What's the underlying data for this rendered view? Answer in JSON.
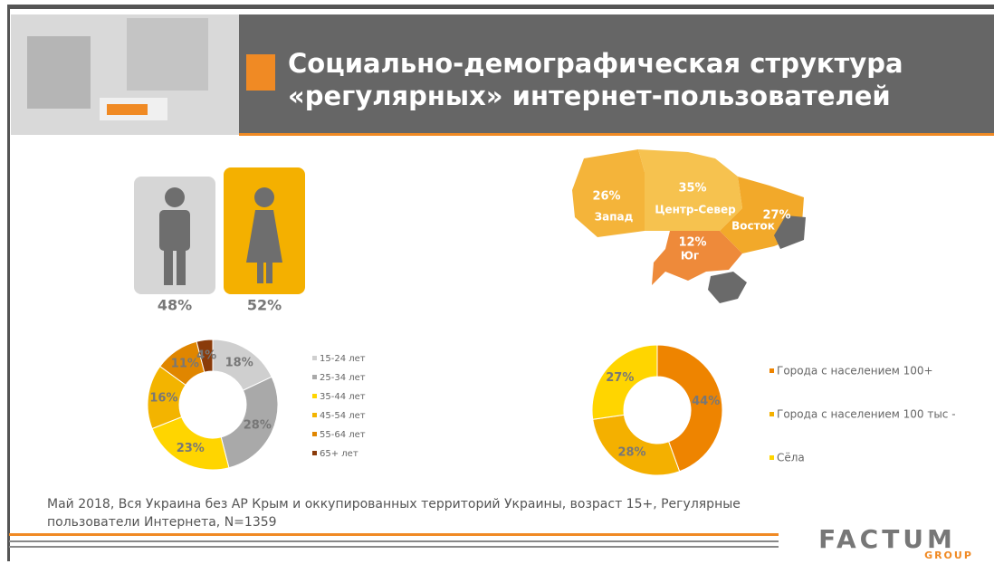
{
  "header": {
    "title_lines": [
      "Социально-демографическая структура",
      "«регулярных» интернет-пользователей"
    ]
  },
  "gender": {
    "male": "48%",
    "female": "52%"
  },
  "map": {
    "regions": [
      {
        "name": "Запад",
        "value": "26%"
      },
      {
        "name": "Центр-Север",
        "value": "35%"
      },
      {
        "name": "Восток",
        "value": "27%"
      },
      {
        "name": "Юг",
        "value": "12%"
      }
    ]
  },
  "chart_data": [
    {
      "type": "pie",
      "categories": [
        "15-24 лет",
        "25-34 лет",
        "35-44 лет",
        "45-54 лет",
        "55-64 лет",
        "65+ лет"
      ],
      "values": [
        18,
        28,
        23,
        16,
        11,
        4
      ],
      "value_labels": [
        "18%",
        "28%",
        "23%",
        "16%",
        "11%",
        "4%"
      ],
      "colors": [
        "#cfcfcf",
        "#a9a9a9",
        "#ffd500",
        "#f3b400",
        "#e08600",
        "#8a3b0a"
      ]
    },
    {
      "type": "pie",
      "categories": [
        "Города с населением 100+",
        "Города с населением 100 тыс -",
        "Сёла"
      ],
      "values": [
        44,
        28,
        27
      ],
      "value_labels": [
        "44%",
        "28%",
        "27%"
      ],
      "colors": [
        "#ee8400",
        "#f4b000",
        "#ffd500"
      ]
    }
  ],
  "footnote": [
    "Май 2018, Вся Украина без АР Крым и оккупированных территорий Украины, возраст 15+, Регулярные",
    "пользователи Интернета, N=1359"
  ],
  "logo": {
    "name": "FACTUM",
    "sub": "GROUP"
  }
}
